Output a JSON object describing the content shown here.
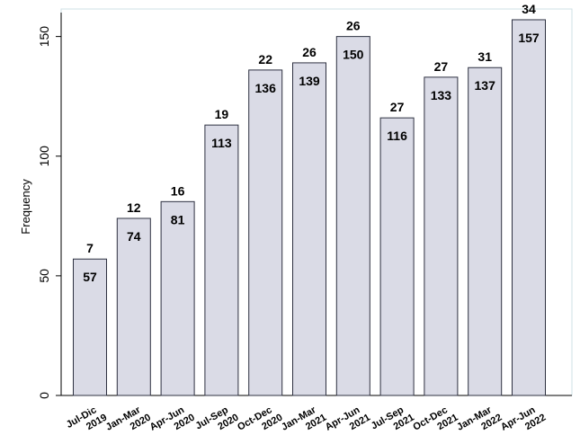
{
  "chart_data": {
    "type": "bar",
    "title": "",
    "xlabel": "",
    "ylabel": "Frequency",
    "ylim": [
      0,
      160
    ],
    "yticks": [
      0,
      50,
      100,
      150
    ],
    "grid": false,
    "legend": "none",
    "categories": [
      [
        "Jul-Dic",
        "2019"
      ],
      [
        "Jan-Mar",
        "2020"
      ],
      [
        "Apr-Jun",
        "2020"
      ],
      [
        "Jul-Sep",
        "2020"
      ],
      [
        "Oct-Dec",
        "2020"
      ],
      [
        "Jan-Mar",
        "2021"
      ],
      [
        "Apr-Jun",
        "2021"
      ],
      [
        "Jul-Sep",
        "2021"
      ],
      [
        "Oct-Dec",
        "2021"
      ],
      [
        "Jan-Mar",
        "2022"
      ],
      [
        "Apr-Jun",
        "2022"
      ]
    ],
    "values": [
      57,
      74,
      81,
      113,
      136,
      139,
      150,
      116,
      133,
      137,
      157
    ],
    "top_labels": [
      "7",
      "12",
      "16",
      "19",
      "22",
      "26",
      "26",
      "27",
      "27",
      "31",
      "34"
    ],
    "colors": {
      "bar_fill": "#dadbe6",
      "bar_stroke": "#2d3040",
      "axis": "#000000",
      "frame": "#cfe0e6"
    }
  }
}
